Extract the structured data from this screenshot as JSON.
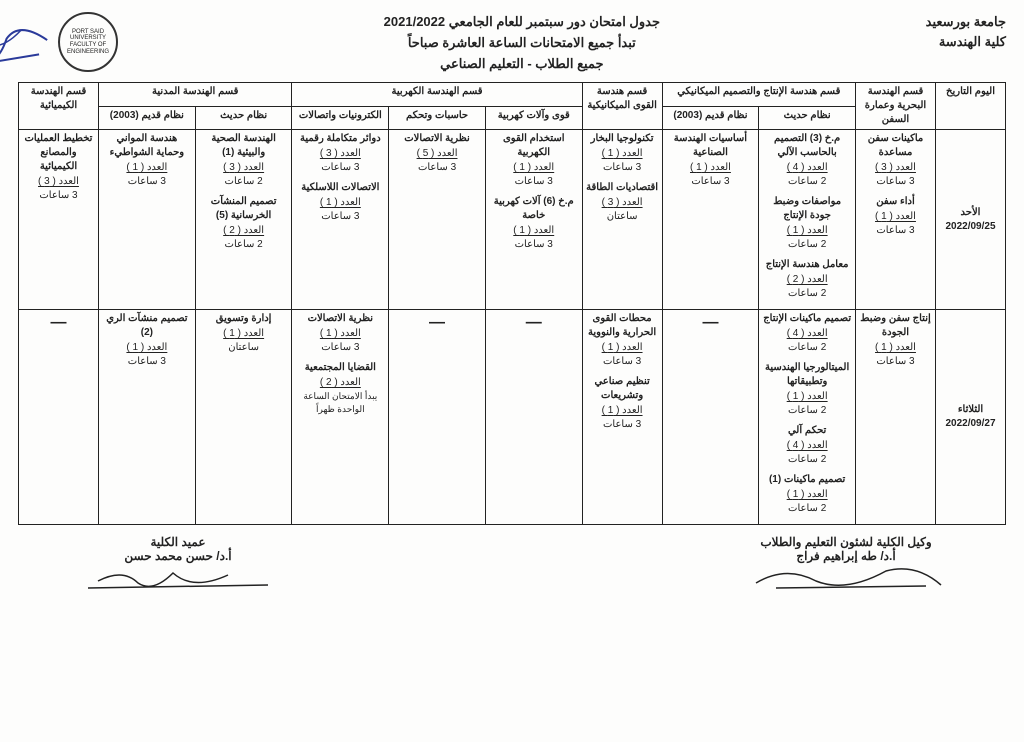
{
  "header": {
    "university": "جامعة بورسعيد",
    "faculty": "كلية الهندسة",
    "title_line1": "جدول امتحان دور سبتمبر للعام الجامعي 2021/2022",
    "title_line2": "تبدأ جميع الامتحانات الساعة العاشرة صباحاً",
    "title_line3": "جميع الطلاب - التعليم الصناعي",
    "logo_text": "PORT SAID UNIVERSITY\nFACULTY OF ENGINEERING"
  },
  "columns": {
    "day": "اليوم\nالتاريخ",
    "naval": "قسم الهندسة البحرية وعمارة السفن",
    "prod_group": "قسم هندسة الإنتاج والتصميم الميكانيكي",
    "prod_new": "نظام حديث",
    "prod_old": "نظام قديم (2003)",
    "mechpower": "قسم هندسة القوى الميكانيكية",
    "elec_group": "قسم الهندسة الكهربية",
    "elec_power": "قوى وآلات كهربية",
    "elec_comp": "حاسبات وتحكم",
    "elec_comm": "الكترونيات واتصالات",
    "civil_group": "قسم الهندسة المدنية",
    "civil_new": "نظام حديث",
    "civil_old": "نظام قديم (2003)",
    "chem": "قسم الهندسة الكيميائية"
  },
  "rows": [
    {
      "day": "الأحد",
      "date": "2022/09/25",
      "naval": [
        {
          "s": "ماكينات سفن مساعدة",
          "c": "العدد ( 3 )",
          "d": "3 ساعات"
        },
        {
          "s": "أداء سفن",
          "c": "العدد ( 1 )",
          "d": "3 ساعات"
        }
      ],
      "prod_new": [
        {
          "s": "م.خ (3) التصميم بالحاسب الآلي",
          "c": "العدد ( 4 )",
          "d": "2 ساعات"
        },
        {
          "s": "مواصفات وضبط جودة الإنتاج",
          "c": "العدد ( 1 )",
          "d": "2 ساعات"
        },
        {
          "s": "معامل هندسة الإنتاج",
          "c": "العدد ( 2 )",
          "d": "2 ساعات"
        }
      ],
      "prod_old": [
        {
          "s": "أساسيات الهندسة الصناعية",
          "c": "العدد ( 1 )",
          "d": "3 ساعات"
        }
      ],
      "mechpower": [
        {
          "s": "تكنولوجيا البخار",
          "c": "العدد ( 1 )",
          "d": "3 ساعات"
        },
        {
          "s": "اقتصاديات الطاقة",
          "c": "العدد ( 3 )",
          "d": "ساعتان"
        }
      ],
      "elec_power": [
        {
          "s": "استخدام القوى الكهربية",
          "c": "العدد ( 1 )",
          "d": "3 ساعات"
        },
        {
          "s": "م.خ (6) آلات كهربية خاصة",
          "c": "العدد ( 1 )",
          "d": "3 ساعات"
        }
      ],
      "elec_comp": [
        {
          "s": "نظرية الاتصالات",
          "c": "العدد ( 5 )",
          "d": "3 ساعات"
        }
      ],
      "elec_comm": [
        {
          "s": "دوائر متكاملة رقمية",
          "c": "العدد ( 3 )",
          "d": "3 ساعات"
        },
        {
          "s": "الاتصالات اللاسلكية",
          "c": "العدد ( 1 )",
          "d": "3 ساعات"
        }
      ],
      "civil_new": [
        {
          "s": "الهندسة الصحية والبيئية (1)",
          "c": "العدد ( 3 )",
          "d": "2 ساعات"
        },
        {
          "s": "تصميم المنشآت الخرسانية (5)",
          "c": "العدد ( 2 )",
          "d": "2 ساعات"
        }
      ],
      "civil_old": [
        {
          "s": "هندسة المواني وحماية الشواطيء",
          "c": "العدد ( 1 )",
          "d": "3 ساعات"
        }
      ],
      "chem": [
        {
          "s": "تخطيط العمليات والمصانع الكيميائية",
          "c": "العدد ( 3 )",
          "d": "3 ساعات"
        }
      ]
    },
    {
      "day": "الثلاثاء",
      "date": "2022/09/27",
      "naval": [
        {
          "s": "إنتاج سفن وضبط الجودة",
          "c": "العدد ( 1 )",
          "d": "3 ساعات"
        }
      ],
      "prod_new": [
        {
          "s": "تصميم ماكينات الإنتاج",
          "c": "العدد ( 4 )",
          "d": "2 ساعات"
        },
        {
          "s": "الميتالورجيا الهندسية وتطبيقاتها",
          "c": "العدد ( 1 )",
          "d": "2 ساعات"
        },
        {
          "s": "تحكم آلي",
          "c": "العدد ( 4 )",
          "d": "2 ساعات"
        },
        {
          "s": "تصميم ماكينات (1)",
          "c": "العدد ( 1 )",
          "d": "2 ساعات"
        }
      ],
      "prod_old": [],
      "mechpower": [
        {
          "s": "محطات القوى الحرارية والنووية",
          "c": "العدد ( 1 )",
          "d": "3 ساعات"
        },
        {
          "s": "تنظيم صناعي وتشريعات",
          "c": "العدد ( 1 )",
          "d": "3 ساعات"
        }
      ],
      "elec_power": [],
      "elec_comp": [],
      "elec_comm": [
        {
          "s": "نظرية الاتصالات",
          "c": "العدد ( 1 )",
          "d": "3 ساعات"
        },
        {
          "s": "القضايا المجتمعية",
          "c": "العدد ( 2 )",
          "d": "",
          "note": "يبدأ الامتحان الساعة الواحدة ظهراً"
        }
      ],
      "civil_new": [
        {
          "s": "إدارة وتسويق",
          "c": "العدد ( 1 )",
          "d": "ساعتان"
        }
      ],
      "civil_old": [
        {
          "s": "تصميم منشآت الري (2)",
          "c": "العدد ( 1 )",
          "d": "3 ساعات"
        }
      ],
      "chem": []
    }
  ],
  "footer": {
    "vice_title": "وكيل الكلية لشئون التعليم والطلاب",
    "vice_name": "أ.د/ طه إبراهيم فراج",
    "dean_title": "عميد الكلية",
    "dean_name": "أ.د/ حسن محمد حسن"
  },
  "style": {
    "border_color": "#222222",
    "bg": "#fdfdfc",
    "text": "#222222",
    "sig_color_top": "#2a3a9a",
    "font_size_body": 10,
    "font_size_header": 13
  }
}
